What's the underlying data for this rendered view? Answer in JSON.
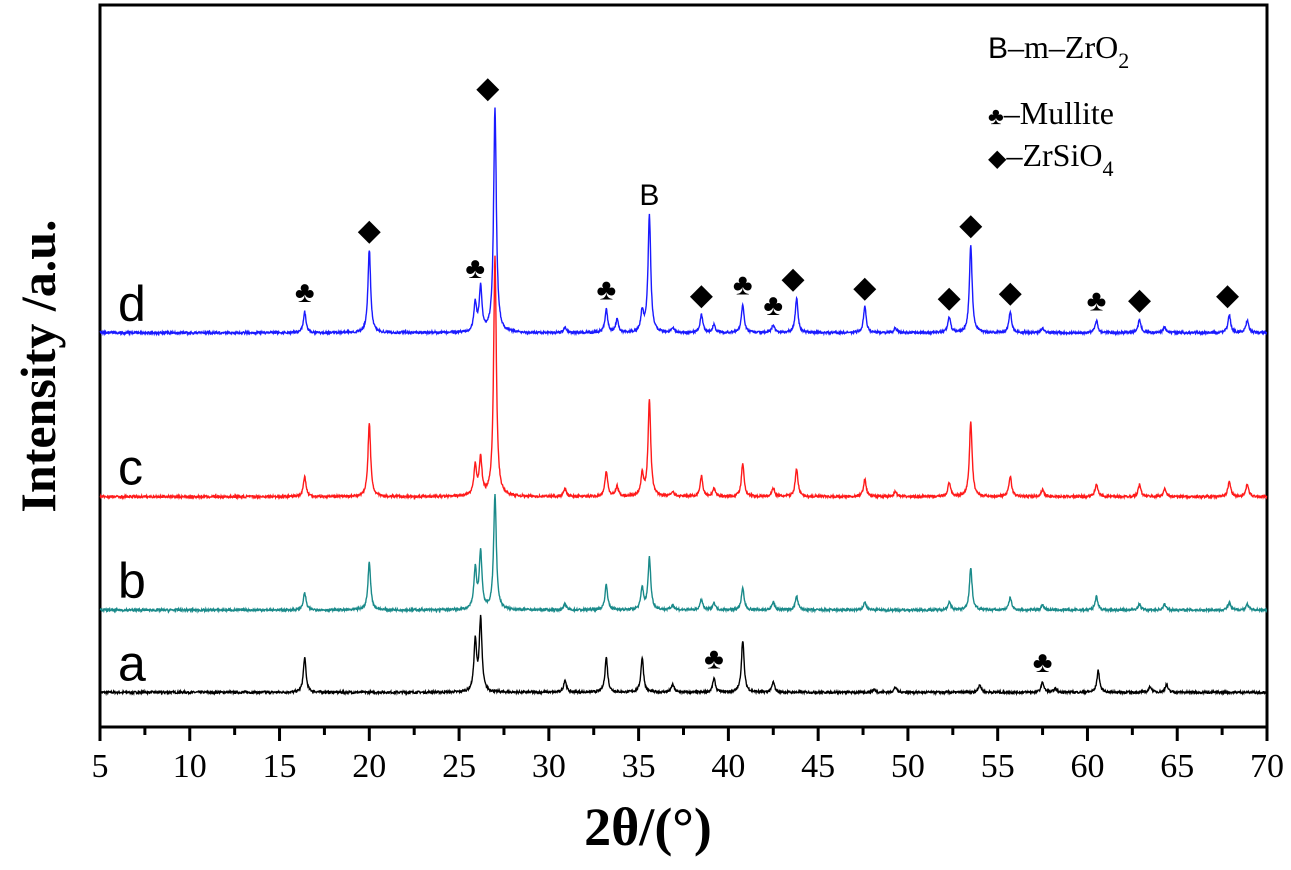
{
  "chart_data": {
    "type": "line",
    "title": "",
    "xlabel": "2θ/(°)",
    "ylabel": "Intensity /a.u.",
    "xlim": [
      5,
      70
    ],
    "ylim": [
      0,
      1000
    ],
    "xticks": [
      5,
      10,
      15,
      20,
      25,
      30,
      35,
      40,
      45,
      50,
      55,
      60,
      65,
      70
    ],
    "xtick_labels": [
      "5",
      "10",
      "15",
      "20",
      "25",
      "30",
      "35",
      "40",
      "45",
      "50",
      "55",
      "60",
      "65",
      "70"
    ],
    "yticks_shown": false,
    "grid": false,
    "legend": {
      "placement": "top-right",
      "entries": [
        {
          "symbol": "B",
          "text": "–m–ZrO",
          "sub": "2"
        },
        {
          "symbol": "♣",
          "text": "–Mullite",
          "sub": ""
        },
        {
          "symbol": "◆",
          "text": "–ZrSiO",
          "sub": "4"
        }
      ]
    },
    "series": [
      {
        "name": "a",
        "color": "#000000",
        "baseline": 48,
        "peaks": [
          [
            16.4,
            48
          ],
          [
            25.9,
            69
          ],
          [
            26.2,
            100
          ],
          [
            30.9,
            17
          ],
          [
            33.2,
            48
          ],
          [
            35.2,
            48
          ],
          [
            36.9,
            11
          ],
          [
            39.2,
            19
          ],
          [
            40.8,
            72
          ],
          [
            42.5,
            14
          ],
          [
            48.1,
            4
          ],
          [
            49.3,
            7
          ],
          [
            54.0,
            11
          ],
          [
            57.5,
            14
          ],
          [
            58.2,
            5
          ],
          [
            60.6,
            30
          ],
          [
            63.5,
            8
          ],
          [
            64.4,
            11
          ]
        ]
      },
      {
        "name": "b",
        "color": "#1a8a8a",
        "baseline": 162,
        "peaks": [
          [
            16.4,
            24
          ],
          [
            20.0,
            66
          ],
          [
            25.9,
            55
          ],
          [
            26.2,
            79
          ],
          [
            27.0,
            159
          ],
          [
            30.9,
            8
          ],
          [
            33.2,
            35
          ],
          [
            35.2,
            30
          ],
          [
            35.6,
            72
          ],
          [
            36.9,
            7
          ],
          [
            38.5,
            14
          ],
          [
            39.2,
            10
          ],
          [
            40.8,
            30
          ],
          [
            42.5,
            11
          ],
          [
            43.8,
            19
          ],
          [
            47.6,
            11
          ],
          [
            52.3,
            11
          ],
          [
            53.5,
            58
          ],
          [
            55.7,
            17
          ],
          [
            57.5,
            7
          ],
          [
            60.5,
            19
          ],
          [
            62.9,
            8
          ],
          [
            64.3,
            8
          ],
          [
            67.9,
            10
          ],
          [
            68.9,
            8
          ]
        ]
      },
      {
        "name": "c",
        "color": "#ff1a1a",
        "baseline": 319,
        "peaks": [
          [
            16.4,
            28
          ],
          [
            20.0,
            101
          ],
          [
            25.9,
            42
          ],
          [
            26.2,
            51
          ],
          [
            27.0,
            332
          ],
          [
            30.9,
            11
          ],
          [
            33.2,
            35
          ],
          [
            33.8,
            14
          ],
          [
            35.2,
            30
          ],
          [
            35.6,
            134
          ],
          [
            36.9,
            7
          ],
          [
            38.5,
            28
          ],
          [
            39.2,
            11
          ],
          [
            40.8,
            46
          ],
          [
            42.5,
            12
          ],
          [
            43.8,
            39
          ],
          [
            47.6,
            24
          ],
          [
            49.3,
            7
          ],
          [
            52.3,
            19
          ],
          [
            53.5,
            104
          ],
          [
            55.7,
            28
          ],
          [
            57.5,
            10
          ],
          [
            60.5,
            18
          ],
          [
            62.9,
            17
          ],
          [
            64.3,
            11
          ],
          [
            67.9,
            21
          ],
          [
            68.9,
            17
          ]
        ]
      },
      {
        "name": "d",
        "color": "#1a1aff",
        "baseline": 546,
        "peaks": [
          [
            16.4,
            29
          ],
          [
            20.0,
            115
          ],
          [
            25.9,
            39
          ],
          [
            26.2,
            62
          ],
          [
            27.0,
            312
          ],
          [
            30.9,
            7
          ],
          [
            33.2,
            32
          ],
          [
            33.8,
            18
          ],
          [
            35.2,
            28
          ],
          [
            35.6,
            163
          ],
          [
            36.9,
            7
          ],
          [
            38.5,
            25
          ],
          [
            39.2,
            11
          ],
          [
            40.8,
            39
          ],
          [
            42.5,
            11
          ],
          [
            43.8,
            48
          ],
          [
            47.6,
            36
          ],
          [
            49.3,
            6
          ],
          [
            52.3,
            22
          ],
          [
            53.5,
            122
          ],
          [
            55.7,
            29
          ],
          [
            57.5,
            7
          ],
          [
            60.5,
            17
          ],
          [
            62.9,
            19
          ],
          [
            64.3,
            8
          ],
          [
            67.9,
            25
          ],
          [
            68.9,
            17
          ]
        ]
      }
    ],
    "annotations": [
      {
        "series": "d",
        "x": 16.4,
        "symbol": "♣"
      },
      {
        "series": "d",
        "x": 20.0,
        "symbol": "◆"
      },
      {
        "series": "d",
        "x": 25.9,
        "symbol": "♣"
      },
      {
        "series": "d",
        "x": 26.6,
        "symbol": "◆"
      },
      {
        "series": "d",
        "x": 33.2,
        "symbol": "♣"
      },
      {
        "series": "d",
        "x": 35.6,
        "symbol": "B"
      },
      {
        "series": "d",
        "x": 38.5,
        "symbol": "◆"
      },
      {
        "series": "d",
        "x": 40.8,
        "symbol": "♣"
      },
      {
        "series": "d",
        "x": 42.5,
        "symbol": "♣"
      },
      {
        "series": "d",
        "x": 43.6,
        "symbol": "◆"
      },
      {
        "series": "d",
        "x": 47.6,
        "symbol": "◆"
      },
      {
        "series": "d",
        "x": 52.3,
        "symbol": "◆"
      },
      {
        "series": "d",
        "x": 53.5,
        "symbol": "◆"
      },
      {
        "series": "d",
        "x": 55.7,
        "symbol": "◆"
      },
      {
        "series": "d",
        "x": 60.5,
        "symbol": "♣"
      },
      {
        "series": "d",
        "x": 62.9,
        "symbol": "◆"
      },
      {
        "series": "d",
        "x": 67.8,
        "symbol": "◆"
      },
      {
        "series": "a",
        "x": 39.2,
        "symbol": "♣"
      },
      {
        "series": "a",
        "x": 57.5,
        "symbol": "♣"
      }
    ]
  }
}
